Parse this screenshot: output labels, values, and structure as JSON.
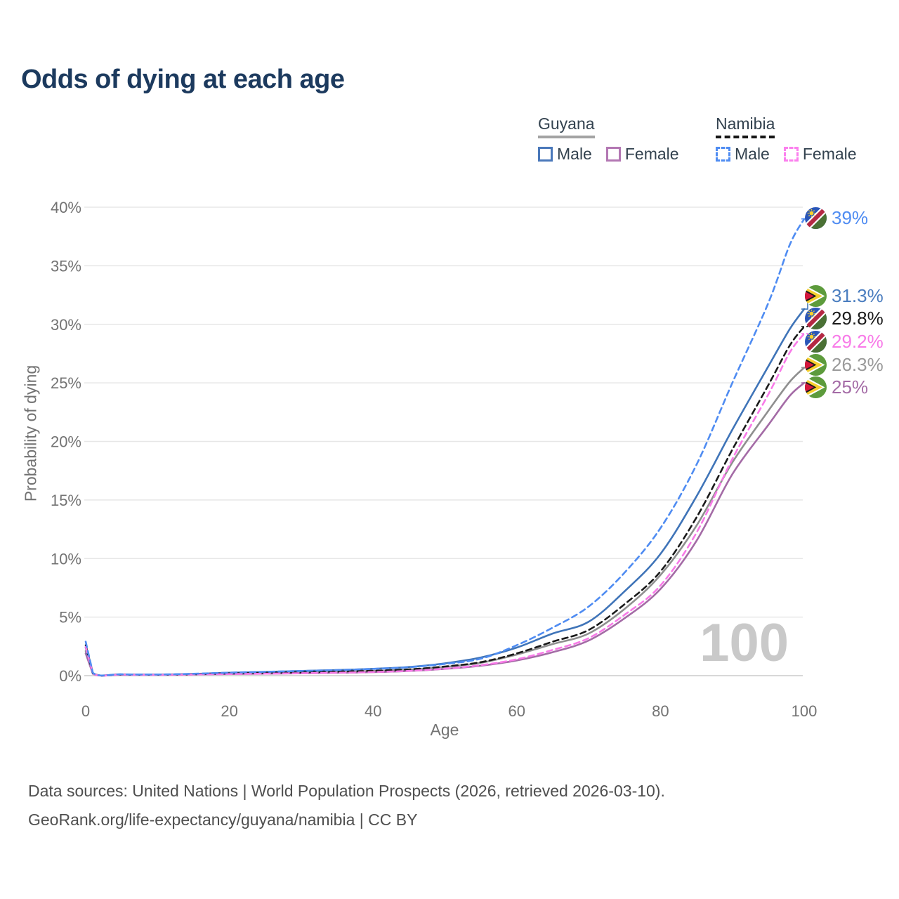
{
  "header": {
    "title": "Odds of dying at each age"
  },
  "legend": {
    "guyana": {
      "title": "Guyana",
      "male": "Male",
      "female": "Female"
    },
    "namibia": {
      "title": "Namibia",
      "male": "Male",
      "female": "Female"
    }
  },
  "watermark": "100",
  "footer": {
    "line1": "Data sources: United Nations | World Population Prospects (2026, retrieved 2026-03-10).",
    "line2": "GeoRank.org/life-expectancy/guyana/namibia | CC BY"
  },
  "chart_data": {
    "type": "line",
    "title": "Odds of dying at each age",
    "xlabel": "Age",
    "ylabel": "Probability of dying",
    "xlim": [
      0,
      100
    ],
    "ylim": [
      0,
      40
    ],
    "grid": "horizontal",
    "legend_position": "top-right",
    "x_ticks": {
      "values": [
        0,
        20,
        40,
        60,
        80,
        100
      ],
      "labels": [
        "0",
        "20",
        "40",
        "60",
        "80",
        "100"
      ]
    },
    "y_ticks": {
      "values": [
        0,
        5,
        10,
        15,
        20,
        25,
        30,
        35,
        40
      ],
      "labels": [
        "0%",
        "5%",
        "10%",
        "15%",
        "20%",
        "25%",
        "30%",
        "35%",
        "40%"
      ]
    },
    "ages": [
      0,
      1,
      5,
      10,
      15,
      20,
      25,
      30,
      35,
      40,
      45,
      50,
      55,
      60,
      65,
      70,
      75,
      80,
      85,
      90,
      95,
      98,
      100
    ],
    "series": [
      {
        "id": "guyana_total",
        "name": "Guyana (both sexes)",
        "country": "guyana",
        "flag": "guyana",
        "style": "solid",
        "color": "#8f8f8f",
        "label_color": "#9a9a9a",
        "end_label": "26.3%",
        "values": [
          2.1,
          0.18,
          0.09,
          0.08,
          0.12,
          0.18,
          0.23,
          0.28,
          0.33,
          0.4,
          0.52,
          0.75,
          1.1,
          1.8,
          2.7,
          3.6,
          5.7,
          8.6,
          12.8,
          18.2,
          22.6,
          25.1,
          26.3
        ]
      },
      {
        "id": "guyana_female",
        "name": "Guyana Female",
        "country": "guyana",
        "flag": "guyana",
        "style": "solid",
        "color": "#a46ba6",
        "label_color": "#a46ba6",
        "end_label": "25%",
        "values": [
          1.9,
          0.16,
          0.08,
          0.07,
          0.1,
          0.14,
          0.17,
          0.2,
          0.24,
          0.3,
          0.4,
          0.58,
          0.85,
          1.3,
          2.0,
          3.0,
          4.9,
          7.4,
          11.5,
          17.2,
          21.4,
          23.9,
          25.0
        ]
      },
      {
        "id": "guyana_male",
        "name": "Guyana Male",
        "country": "guyana",
        "flag": "guyana",
        "style": "solid",
        "color": "#3f74b8",
        "label_color": "#4a7dbf",
        "end_label": "31.3%",
        "values": [
          2.4,
          0.21,
          0.1,
          0.09,
          0.15,
          0.25,
          0.32,
          0.4,
          0.48,
          0.58,
          0.74,
          1.05,
          1.55,
          2.4,
          3.6,
          4.6,
          7.2,
          10.4,
          15.3,
          21.0,
          26.4,
          29.6,
          31.3
        ]
      },
      {
        "id": "namibia_total",
        "name": "Namibia (both sexes)",
        "country": "namibia",
        "flag": "namibia",
        "style": "dashed",
        "color": "#1a1a1a",
        "label_color": "#1a1a1a",
        "end_label": "29.8%",
        "values": [
          2.6,
          0.22,
          0.1,
          0.08,
          0.12,
          0.19,
          0.24,
          0.29,
          0.35,
          0.42,
          0.54,
          0.78,
          1.15,
          1.9,
          2.9,
          3.9,
          6.1,
          8.9,
          13.5,
          19.3,
          24.8,
          28.2,
          29.8
        ]
      },
      {
        "id": "namibia_female",
        "name": "Namibia Female",
        "country": "namibia",
        "flag": "namibia",
        "style": "dashed",
        "color": "#f87ae8",
        "label_color": "#f87ae8",
        "end_label": "29.2%",
        "values": [
          2.45,
          0.2,
          0.09,
          0.07,
          0.1,
          0.14,
          0.17,
          0.21,
          0.25,
          0.31,
          0.41,
          0.6,
          0.9,
          1.4,
          2.2,
          3.2,
          5.2,
          7.7,
          12.2,
          18.5,
          24.0,
          27.6,
          29.2
        ]
      },
      {
        "id": "namibia_male",
        "name": "Namibia Male",
        "country": "namibia",
        "flag": "namibia",
        "style": "dashed",
        "color": "#4f8cf2",
        "label_color": "#4f8cf2",
        "end_label": "39%",
        "values": [
          2.9,
          0.25,
          0.12,
          0.1,
          0.16,
          0.26,
          0.33,
          0.4,
          0.48,
          0.58,
          0.72,
          1.0,
          1.45,
          2.6,
          4.1,
          5.9,
          8.8,
          12.6,
          18.0,
          25.0,
          31.8,
          36.8,
          39.0
        ]
      }
    ],
    "end_label_order": [
      "namibia_male",
      "guyana_male",
      "namibia_total",
      "namibia_female",
      "guyana_total",
      "guyana_female"
    ]
  }
}
